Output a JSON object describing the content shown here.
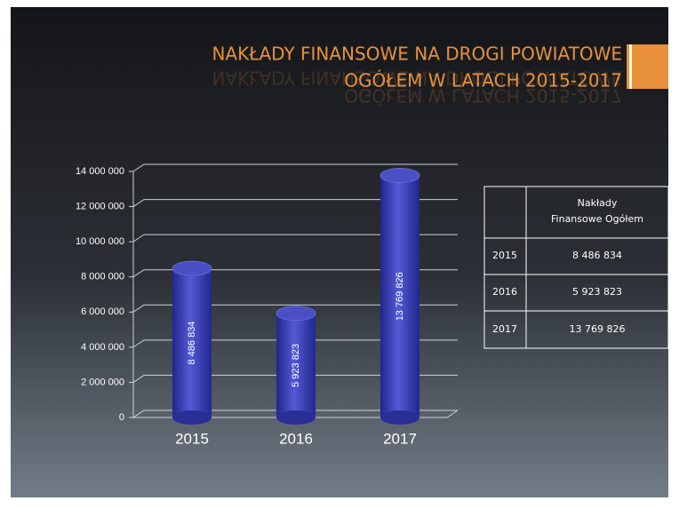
{
  "chart_data": {
    "type": "bar",
    "title": [
      "NAKŁADY FINANSOWE NA DROGI POWIATOWE",
      "OGÓŁEM W LATACH 2015-2017"
    ],
    "categories": [
      "2015",
      "2016",
      "2017"
    ],
    "values": [
      8486834,
      5923823,
      13769826
    ],
    "value_labels": [
      "8 486 834",
      "5 923 823",
      "13 769 826"
    ],
    "color": "#3a40b0",
    "ylim": [
      0,
      14000000
    ],
    "yticks": [
      0,
      {
        "value": 2000000,
        "label": "2 000 000"
      },
      {
        "value": 4000000,
        "label": "4 000 000"
      },
      {
        "value": 6000000,
        "label": "6 000 000"
      },
      {
        "value": 8000000,
        "label": "8 000 000"
      },
      {
        "value": 10000000,
        "label": "10 000 000"
      },
      {
        "value": 12000000,
        "label": "12 000 000"
      },
      {
        "value": 14000000,
        "label": "14 000 000"
      }
    ],
    "grid": true,
    "table_header": [
      "Nakłady",
      "Finansowe Ogółem"
    ]
  }
}
